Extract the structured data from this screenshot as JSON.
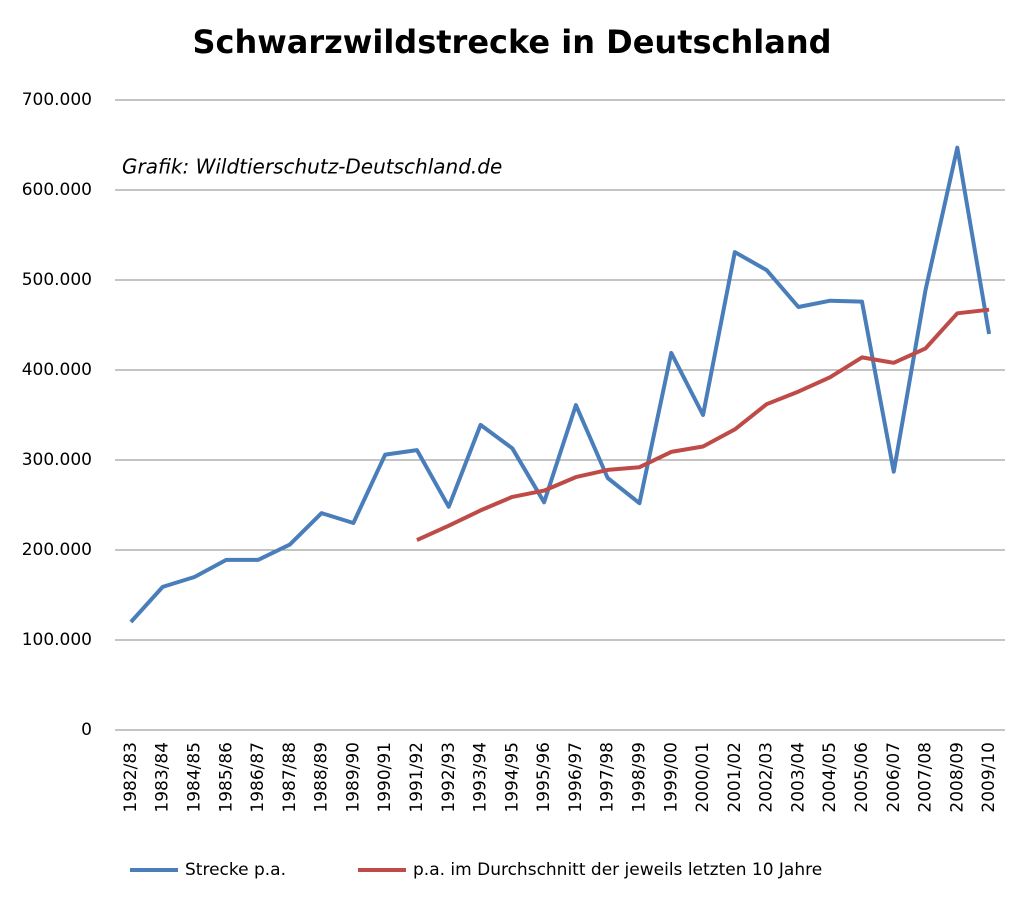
{
  "chart_data": {
    "type": "line",
    "title": "Schwarzwildstrecke  in Deutschland",
    "annotation": "Grafik: Wildtierschutz-Deutschland.de",
    "categories": [
      "1982/83",
      "1983/84",
      "1984/85",
      "1985/86",
      "1986/87",
      "1987/88",
      "1988/89",
      "1989/90",
      "1990/91",
      "1991/92",
      "1992/93",
      "1993/94",
      "1994/95",
      "1995/96",
      "1996/97",
      "1997/98",
      "1998/99",
      "1999/00",
      "2000/01",
      "2001/02",
      "2002/03",
      "2003/04",
      "2004/05",
      "2005/06",
      "2006/07",
      "2007/08",
      "2008/09",
      "2009/10"
    ],
    "series": [
      {
        "name": "Strecke p.a.",
        "color": "#4a7ebb",
        "values": [
          120000,
          159000,
          170000,
          189000,
          189000,
          206000,
          241000,
          230000,
          306000,
          311000,
          248000,
          339000,
          313000,
          253000,
          361000,
          280000,
          252000,
          419000,
          350000,
          531000,
          511000,
          470000,
          477000,
          476000,
          287000,
          489000,
          647000,
          440000
        ]
      },
      {
        "name": "p.a. im Durchschnitt der jeweils letzten 10 Jahre",
        "color": "#be4b48",
        "values": [
          null,
          null,
          null,
          null,
          null,
          null,
          null,
          null,
          null,
          211000,
          227000,
          244000,
          259000,
          266000,
          281000,
          289000,
          292000,
          309000,
          315000,
          334000,
          362000,
          376000,
          392000,
          414000,
          408000,
          424000,
          463000,
          467000
        ]
      }
    ],
    "ylim": [
      0,
      700000
    ],
    "yticks": [
      0,
      {
        "value": 100000,
        "label": "100.000"
      },
      {
        "value": 200000,
        "label": "200.000"
      },
      {
        "value": 300000,
        "label": "300.000"
      },
      {
        "value": 400000,
        "label": "400.000"
      },
      {
        "value": 500000,
        "label": "500.000"
      },
      {
        "value": 600000,
        "label": "600.000"
      },
      {
        "value": 700000,
        "label": "700.000"
      }
    ],
    "grid": true
  }
}
